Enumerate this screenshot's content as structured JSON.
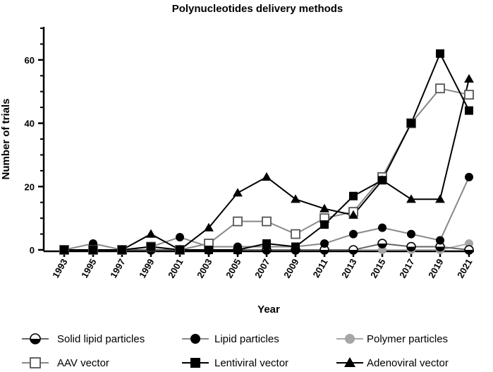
{
  "chart_data": {
    "type": "line",
    "title": "Polynucleotides delivery methods",
    "xlabel": "Year",
    "ylabel": "Number of trials",
    "x": [
      1993,
      1995,
      1997,
      1999,
      2001,
      2003,
      2005,
      2007,
      2009,
      2011,
      2013,
      2015,
      2017,
      2019,
      2021
    ],
    "x_tick_labels": [
      "1993",
      "1995",
      "1997",
      "1999",
      "2001",
      "2003",
      "2005",
      "2007",
      "2009",
      "2011",
      "2013",
      "2015",
      "2017",
      "2019",
      "2021"
    ],
    "ylim": [
      0,
      70
    ],
    "y_ticks": [
      0,
      20,
      40,
      60
    ],
    "y_tick_labels": [
      "0",
      "20",
      "40",
      "60"
    ],
    "grid": false,
    "legend_position": "bottom",
    "series": [
      {
        "name": "Solid lipid particles",
        "marker": "half-circle",
        "line_color": "#666666",
        "values": [
          0,
          0,
          0,
          0,
          0,
          0,
          0,
          0,
          0,
          0,
          0,
          2,
          1,
          1,
          0
        ]
      },
      {
        "name": "Lipid particles",
        "marker": "circle",
        "line_color": "#888888",
        "values": [
          0,
          2,
          0,
          1,
          4,
          1,
          1,
          1,
          1,
          2,
          5,
          7,
          5,
          3,
          23
        ]
      },
      {
        "name": "Polymer particles",
        "marker": "circle-gray",
        "line_color": "#aaaaaa",
        "values": [
          0,
          0,
          0,
          0,
          0,
          0,
          0,
          0,
          0,
          0,
          0,
          0,
          0,
          0,
          2
        ]
      },
      {
        "name": "AAV vector",
        "marker": "open-square",
        "line_color": "#888888",
        "values": [
          0,
          0,
          0,
          1,
          0,
          2,
          9,
          9,
          5,
          10,
          12,
          23,
          40,
          51,
          49
        ]
      },
      {
        "name": "Lentiviral vector",
        "marker": "square",
        "line_color": "#000000",
        "values": [
          0,
          0,
          0,
          1,
          0,
          0,
          0,
          2,
          1,
          8,
          17,
          22,
          40,
          62,
          44
        ]
      },
      {
        "name": "Adenoviral vector",
        "marker": "triangle",
        "line_color": "#000000",
        "values": [
          0,
          0,
          0,
          5,
          0,
          7,
          18,
          23,
          16,
          13,
          11,
          22,
          16,
          16,
          54
        ]
      }
    ]
  }
}
